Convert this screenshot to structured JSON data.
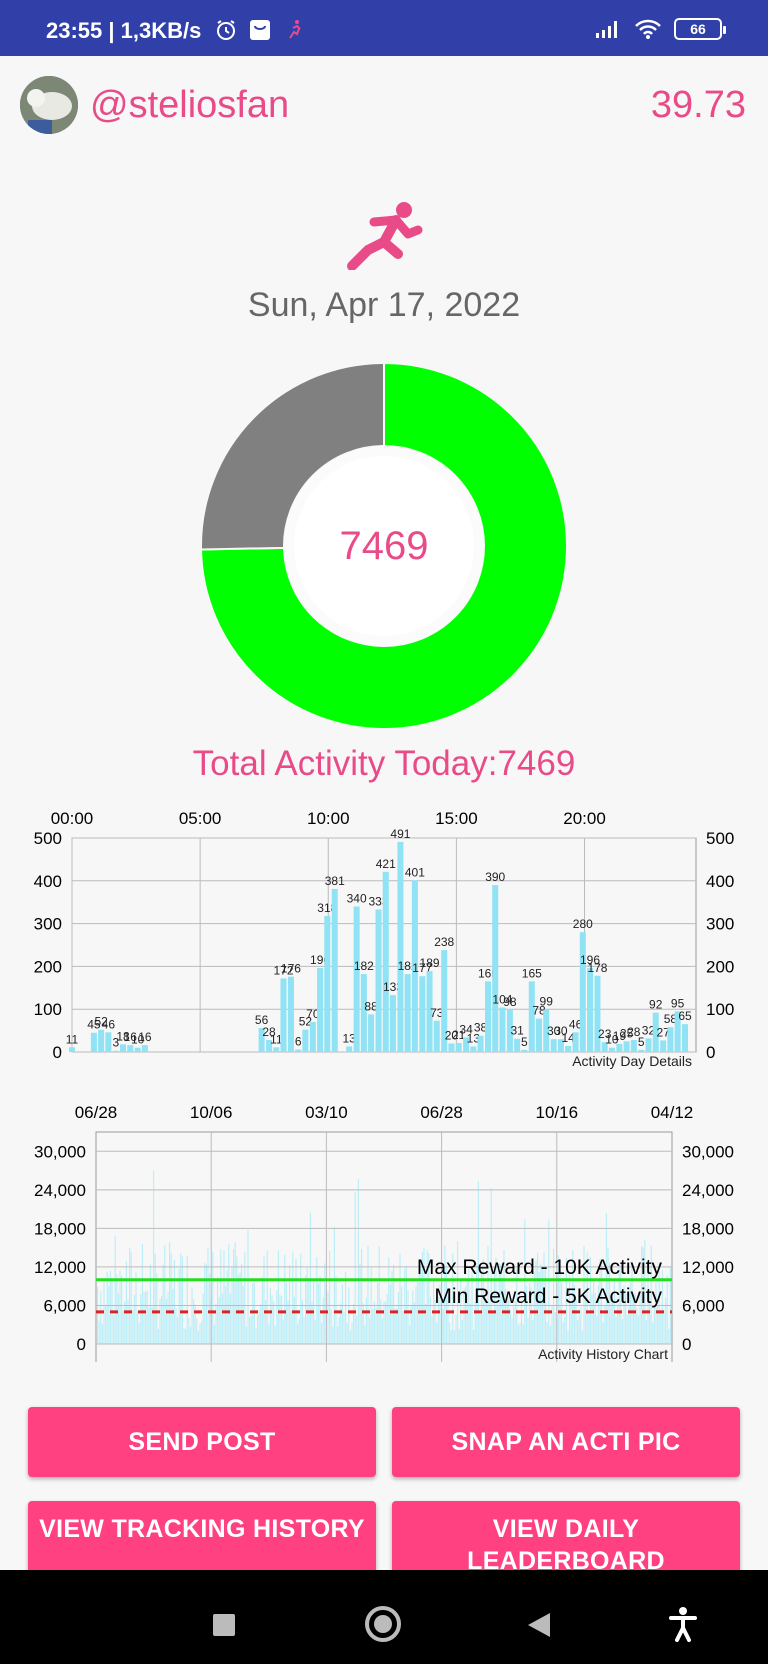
{
  "status_bar": {
    "time": "23:55 | 1,3KB/s",
    "battery": "66",
    "icons_left": [
      "alarm-icon",
      "bag-icon",
      "running-icon"
    ],
    "icons_right": [
      "signal-icon",
      "wifi-icon",
      "battery-icon"
    ]
  },
  "header": {
    "username": "@steliosfan",
    "score": "39.73"
  },
  "activity": {
    "date": "Sun, Apr 17, 2022",
    "center_value": "7469",
    "total_label": "Total Activity Today:7469",
    "goal_fraction": 0.747,
    "colors": {
      "progress": "#00ff00",
      "remaining": "#808080",
      "accent": "#e84b88"
    }
  },
  "day_chart": {
    "type": "bar",
    "top_axis_ticks": [
      "00:00",
      "05:00",
      "10:00",
      "15:00",
      "20:00"
    ],
    "y_ticks": [
      "0",
      "100",
      "200",
      "300",
      "400",
      "500"
    ],
    "description": "Activity Day Details",
    "ylim": [
      0,
      500
    ],
    "bar_color": "#8fe3f4",
    "bars": [
      {
        "x": 0,
        "v": 11
      },
      {
        "x": 1,
        "v": 45
      },
      {
        "x": 1.33,
        "v": 52
      },
      {
        "x": 1.66,
        "v": 46
      },
      {
        "x": 2,
        "v": 3
      },
      {
        "x": 2.33,
        "v": 18
      },
      {
        "x": 2.66,
        "v": 16
      },
      {
        "x": 3,
        "v": 10
      },
      {
        "x": 3.33,
        "v": 16
      },
      {
        "x": 8.66,
        "v": 56
      },
      {
        "x": 9,
        "v": 28
      },
      {
        "x": 9.33,
        "v": 11
      },
      {
        "x": 9.66,
        "v": 172
      },
      {
        "x": 10,
        "v": 176
      },
      {
        "x": 10.33,
        "v": 6
      },
      {
        "x": 10.66,
        "v": 52
      },
      {
        "x": 11,
        "v": 70
      },
      {
        "x": 11.33,
        "v": 196
      },
      {
        "x": 11.66,
        "v": 318
      },
      {
        "x": 12,
        "v": 381
      },
      {
        "x": 12.66,
        "v": 13
      },
      {
        "x": 13,
        "v": 340
      },
      {
        "x": 13.33,
        "v": 182
      },
      {
        "x": 13.66,
        "v": 88
      },
      {
        "x": 14,
        "v": 333
      },
      {
        "x": 14.33,
        "v": 421
      },
      {
        "x": 14.66,
        "v": 133
      },
      {
        "x": 15,
        "v": 491
      },
      {
        "x": 15.33,
        "v": 182
      },
      {
        "x": 15.66,
        "v": 401
      },
      {
        "x": 16,
        "v": 177
      },
      {
        "x": 16.33,
        "v": 189
      },
      {
        "x": 16.66,
        "v": 73
      },
      {
        "x": 17,
        "v": 238
      },
      {
        "x": 17.33,
        "v": 20
      },
      {
        "x": 17.66,
        "v": 21
      },
      {
        "x": 18,
        "v": 34
      },
      {
        "x": 18.33,
        "v": 13
      },
      {
        "x": 18.66,
        "v": 38
      },
      {
        "x": 19,
        "v": 165
      },
      {
        "x": 19.33,
        "v": 390
      },
      {
        "x": 19.66,
        "v": 104
      },
      {
        "x": 20,
        "v": 98
      },
      {
        "x": 20.33,
        "v": 31
      },
      {
        "x": 20.66,
        "v": 5
      },
      {
        "x": 21,
        "v": 165
      },
      {
        "x": 21.33,
        "v": 78
      },
      {
        "x": 21.66,
        "v": 99
      },
      {
        "x": 22,
        "v": 30
      },
      {
        "x": 22.33,
        "v": 30
      },
      {
        "x": 22.66,
        "v": 14
      },
      {
        "x": 23,
        "v": 46
      },
      {
        "x": 23.33,
        "v": 280
      },
      {
        "x": 23.66,
        "v": 196
      },
      {
        "x": 24,
        "v": 178
      },
      {
        "x": 24.33,
        "v": 23
      },
      {
        "x": 24.66,
        "v": 10
      },
      {
        "x": 25,
        "v": 19
      },
      {
        "x": 25.33,
        "v": 25
      },
      {
        "x": 25.66,
        "v": 28
      },
      {
        "x": 26,
        "v": 5
      },
      {
        "x": 26.33,
        "v": 32
      },
      {
        "x": 26.66,
        "v": 92
      },
      {
        "x": 27,
        "v": 27
      },
      {
        "x": 27.33,
        "v": 58
      },
      {
        "x": 27.66,
        "v": 95
      },
      {
        "x": 28,
        "v": 65
      }
    ]
  },
  "history_chart": {
    "type": "bar",
    "top_axis_ticks": [
      "06/28",
      "10/06",
      "03/10",
      "06/28",
      "10/16",
      "04/12"
    ],
    "y_ticks": [
      "0",
      "6,000",
      "12,000",
      "18,000",
      "24,000",
      "30,000"
    ],
    "description": "Activity History Chart",
    "ylim": [
      0,
      33000
    ],
    "bar_color": "#bdeef8",
    "max_line": {
      "label": "Max Reward - 10K Activity",
      "value": 10000,
      "color": "#22dd22"
    },
    "min_line": {
      "label": "Min Reward - 5K Activity",
      "value": 5000,
      "color": "#dd2222"
    }
  },
  "buttons": {
    "send_post": "SEND POST",
    "snap_pic": "SNAP AN ACTI PIC",
    "view_tracking": "VIEW TRACKING HISTORY",
    "view_leaderboard": "VIEW DAILY LEADERBOARD"
  }
}
